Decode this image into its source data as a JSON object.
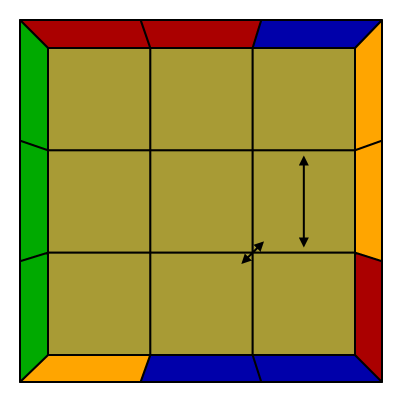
{
  "diagram": {
    "type": "cube-last-layer-top-view",
    "grid_size": 3,
    "colors": {
      "top_face": "#A89B35",
      "red": "#AA0000",
      "blue": "#0000AA",
      "orange": "#FFA500",
      "green": "#00AA00",
      "outline": "#000000",
      "arrow": "#000000"
    },
    "side_stickers": {
      "top": [
        "red",
        "red",
        "blue"
      ],
      "right": [
        "orange",
        "orange",
        "red"
      ],
      "bottom": [
        "orange",
        "blue",
        "blue"
      ],
      "left": [
        "green",
        "green",
        "green"
      ]
    },
    "arrows": [
      {
        "from": [
          2,
          0
        ],
        "to": [
          2,
          2
        ],
        "double_headed": true
      },
      {
        "from": [
          2,
          1
        ],
        "to": [
          1,
          2
        ],
        "double_headed": true
      }
    ]
  }
}
